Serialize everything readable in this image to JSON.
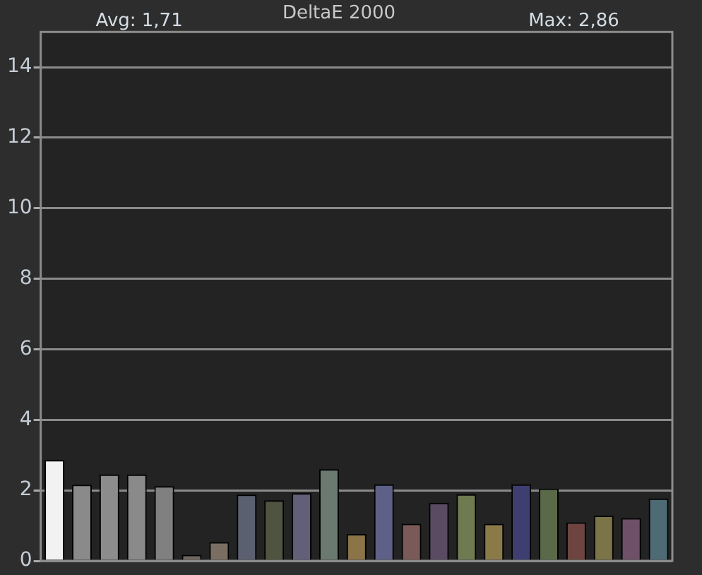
{
  "chart_data": {
    "type": "bar",
    "title": "DeltaE 2000",
    "annotations": [
      "Avg: 1,71",
      "Max: 2,86"
    ],
    "categories": [
      null,
      null,
      null,
      null,
      null,
      null,
      null,
      null,
      null,
      null,
      null,
      null,
      null,
      null,
      null,
      null,
      null,
      null,
      null,
      null,
      null,
      null,
      null
    ],
    "values": [
      2.86,
      2.16,
      2.45,
      2.45,
      2.12,
      0.17,
      0.53,
      1.88,
      1.72,
      1.92,
      2.6,
      0.76,
      2.17,
      1.05,
      1.65,
      1.89,
      1.05,
      2.17,
      2.05,
      1.09,
      1.28,
      1.21,
      1.77
    ],
    "colors": [
      "#f2f2f2",
      "#8a8a8a",
      "#8c8c8c",
      "#8a8a8a",
      "#808080",
      "#6e6660",
      "#7a6e62",
      "#5a6070",
      "#4e5440",
      "#626078",
      "#6a7a70",
      "#8a7448",
      "#5e6088",
      "#7a5a58",
      "#5a4a62",
      "#6e7a50",
      "#8a7a48",
      "#3e3e70",
      "#5a6a48",
      "#6e4440",
      "#7a7448",
      "#6e5068",
      "#4e6a74"
    ],
    "ylim": [
      0,
      15
    ],
    "yticks": [
      0,
      2,
      4,
      6,
      8,
      10,
      12,
      14
    ],
    "grid": "y",
    "tick_labels": "y"
  }
}
